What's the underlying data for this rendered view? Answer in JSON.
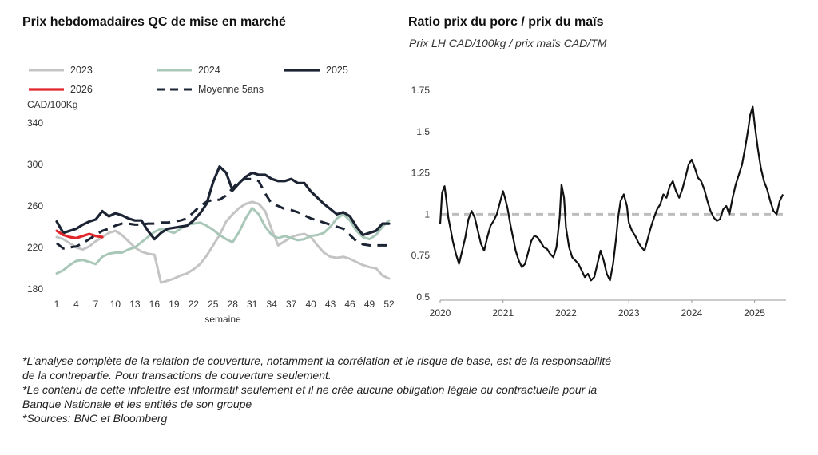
{
  "charts": {
    "left": {
      "title": "Prix hebdomadaires QC de mise en marché"
    },
    "right": {
      "title": "Ratio prix du porc / prix du maïs",
      "subtitle": "Prix LH CAD/100kg / prix maïs CAD/TM"
    }
  },
  "footnotes": [
    "*L’analyse complète de la relation de couverture, notamment la corrélation et le risque de base, est de la responsabilité",
    "de la contrepartie. Pour transactions de couverture seulement.",
    "*Le contenu de cette infolettre est informatif seulement et il ne crée aucune obligation légale ou contractuelle pour la",
    "Banque Nationale et les entités de son groupe",
    "*Sources: BNC et Bloomberg"
  ],
  "chart_data": [
    {
      "type": "line",
      "title": "Prix hebdomadaires QC de mise en marché",
      "ylabel": "CAD/100Kg",
      "xlabel": "semaine",
      "ylim": [
        180,
        340
      ],
      "yticks": [
        180,
        220,
        260,
        300,
        340
      ],
      "xlim": [
        1,
        52
      ],
      "xticks": [
        1,
        4,
        7,
        10,
        13,
        16,
        19,
        22,
        25,
        28,
        31,
        34,
        37,
        40,
        43,
        46,
        49,
        52
      ],
      "grid": false,
      "legend_position": "top",
      "series": [
        {
          "name": "2023",
          "color": "#c4c4c4",
          "dash": false,
          "width": 3,
          "x": [
            1,
            2,
            3,
            4,
            5,
            6,
            7,
            8,
            9,
            10,
            11,
            12,
            13,
            14,
            15,
            16,
            17,
            18,
            19,
            20,
            21,
            22,
            23,
            24,
            25,
            26,
            27,
            28,
            29,
            30,
            31,
            32,
            33,
            34,
            35,
            36,
            37,
            38,
            39,
            40,
            41,
            42,
            43,
            44,
            45,
            46,
            47,
            48,
            49,
            50,
            51,
            52
          ],
          "values": [
            230,
            228,
            224,
            220,
            218,
            221,
            226,
            230,
            234,
            236,
            232,
            226,
            220,
            216,
            214,
            213,
            186,
            188,
            190,
            193,
            195,
            199,
            204,
            212,
            222,
            232,
            245,
            252,
            258,
            262,
            264,
            262,
            255,
            237,
            222,
            226,
            230,
            232,
            233,
            230,
            222,
            215,
            211,
            210,
            211,
            209,
            206,
            203,
            201,
            200,
            193,
            190
          ]
        },
        {
          "name": "2024",
          "color": "#a9c7b8",
          "dash": false,
          "width": 3,
          "x": [
            1,
            2,
            3,
            4,
            5,
            6,
            7,
            8,
            9,
            10,
            11,
            12,
            13,
            14,
            15,
            16,
            17,
            18,
            19,
            20,
            21,
            22,
            23,
            24,
            25,
            26,
            27,
            28,
            29,
            30,
            31,
            32,
            33,
            34,
            35,
            36,
            37,
            38,
            39,
            40,
            41,
            42,
            43,
            44,
            45,
            46,
            47,
            48,
            49,
            50,
            51,
            52
          ],
          "values": [
            195,
            198,
            203,
            207,
            208,
            206,
            204,
            211,
            214,
            215,
            215,
            218,
            220,
            225,
            230,
            235,
            238,
            236,
            234,
            238,
            242,
            243,
            244,
            241,
            237,
            232,
            228,
            225,
            235,
            248,
            258,
            252,
            240,
            232,
            229,
            231,
            229,
            227,
            228,
            231,
            232,
            234,
            240,
            248,
            252,
            246,
            236,
            230,
            228,
            232,
            240,
            246
          ]
        },
        {
          "name": "2025",
          "color": "#1c2434",
          "dash": false,
          "width": 3.2,
          "x": [
            1,
            2,
            3,
            4,
            5,
            6,
            7,
            8,
            9,
            10,
            11,
            12,
            13,
            14,
            15,
            16,
            17,
            18,
            19,
            20,
            21,
            22,
            23,
            24,
            25,
            26,
            27,
            28,
            29,
            30,
            31,
            32,
            33,
            34,
            35,
            36,
            37,
            38,
            39,
            40,
            41,
            42,
            43,
            44,
            45,
            46,
            47,
            48,
            49,
            50,
            51,
            52
          ],
          "values": [
            245,
            234,
            236,
            238,
            242,
            245,
            247,
            255,
            250,
            253,
            251,
            248,
            246,
            246,
            236,
            228,
            234,
            238,
            239,
            240,
            241,
            246,
            253,
            262,
            283,
            298,
            292,
            275,
            282,
            288,
            292,
            290,
            290,
            286,
            284,
            284,
            286,
            282,
            282,
            274,
            268,
            262,
            257,
            252,
            254,
            250,
            240,
            232,
            234,
            236,
            243,
            243
          ]
        },
        {
          "name": "2026",
          "color": "#e0262a",
          "dash": false,
          "width": 3.2,
          "x": [
            1,
            2,
            3,
            4,
            5,
            6,
            7,
            8
          ],
          "values": [
            236,
            232,
            230,
            229,
            231,
            233,
            231,
            230
          ]
        },
        {
          "name": "Moyenne 5ans",
          "color": "#1c2434",
          "dash": true,
          "width": 3,
          "x": [
            1,
            2,
            3,
            4,
            5,
            6,
            7,
            8,
            9,
            10,
            11,
            12,
            13,
            14,
            15,
            16,
            17,
            18,
            19,
            20,
            21,
            22,
            23,
            24,
            25,
            26,
            27,
            28,
            29,
            30,
            31,
            32,
            33,
            34,
            35,
            36,
            37,
            38,
            39,
            40,
            41,
            42,
            43,
            44,
            45,
            46,
            47,
            48,
            49,
            50,
            51,
            52
          ],
          "values": [
            224,
            219,
            220,
            221,
            224,
            228,
            232,
            236,
            238,
            241,
            243,
            243,
            242,
            242,
            243,
            243,
            244,
            244,
            245,
            246,
            248,
            254,
            260,
            264,
            266,
            266,
            270,
            277,
            284,
            286,
            286,
            284,
            272,
            262,
            260,
            257,
            256,
            254,
            251,
            248,
            246,
            244,
            242,
            240,
            238,
            232,
            226,
            223,
            222,
            222,
            222,
            222
          ]
        }
      ]
    },
    {
      "type": "line",
      "title": "Ratio prix du porc / prix du maïs",
      "subtitle": "Prix LH CAD/100kg / prix maïs CAD/TM",
      "ylim": [
        0.5,
        1.75
      ],
      "yticks": [
        0.5,
        0.75,
        1,
        1.25,
        1.5,
        1.75
      ],
      "ytick_labels": [
        "0.5",
        "0.75",
        "1",
        "1.25",
        "1.5",
        "1.75"
      ],
      "xlim": [
        2020,
        2025.5
      ],
      "xticks": [
        2020,
        2021,
        2022,
        2023,
        2024,
        2025
      ],
      "grid": false,
      "reference_line": {
        "y": 1,
        "color": "#bdbdbd",
        "dash": true
      },
      "series": [
        {
          "color": "#111111",
          "width": 2.2,
          "x": [
            2020,
            2020.03,
            2020.07,
            2020.1,
            2020.13,
            2020.17,
            2020.2,
            2020.25,
            2020.3,
            2020.35,
            2020.4,
            2020.45,
            2020.5,
            2020.55,
            2020.6,
            2020.65,
            2020.7,
            2020.75,
            2020.8,
            2020.85,
            2020.9,
            2020.95,
            2021,
            2021.03,
            2021.07,
            2021.12,
            2021.17,
            2021.2,
            2021.25,
            2021.3,
            2021.35,
            2021.4,
            2021.45,
            2021.5,
            2021.55,
            2021.6,
            2021.65,
            2021.7,
            2021.75,
            2021.8,
            2021.85,
            2021.9,
            2021.93,
            2021.97,
            2022,
            2022.05,
            2022.1,
            2022.15,
            2022.2,
            2022.25,
            2022.3,
            2022.35,
            2022.4,
            2022.45,
            2022.5,
            2022.55,
            2022.6,
            2022.65,
            2022.7,
            2022.75,
            2022.8,
            2022.83,
            2022.87,
            2022.92,
            2022.97,
            2023,
            2023.05,
            2023.1,
            2023.15,
            2023.2,
            2023.25,
            2023.3,
            2023.35,
            2023.4,
            2023.45,
            2023.5,
            2023.55,
            2023.6,
            2023.65,
            2023.7,
            2023.75,
            2023.8,
            2023.85,
            2023.9,
            2023.95,
            2024,
            2024.05,
            2024.1,
            2024.15,
            2024.2,
            2024.25,
            2024.3,
            2024.35,
            2024.4,
            2024.45,
            2024.5,
            2024.55,
            2024.6,
            2024.65,
            2024.7,
            2024.75,
            2024.8,
            2024.85,
            2024.9,
            2024.93,
            2024.97,
            2025,
            2025.05,
            2025.1,
            2025.15,
            2025.2,
            2025.25,
            2025.3,
            2025.35,
            2025.4,
            2025.45
          ],
          "values": [
            0.94,
            1.13,
            1.17,
            1.08,
            0.98,
            0.9,
            0.84,
            0.76,
            0.7,
            0.78,
            0.86,
            0.97,
            1.02,
            0.98,
            0.9,
            0.82,
            0.78,
            0.86,
            0.93,
            0.96,
            1.0,
            1.07,
            1.14,
            1.1,
            1.04,
            0.93,
            0.84,
            0.78,
            0.72,
            0.68,
            0.7,
            0.77,
            0.84,
            0.87,
            0.86,
            0.83,
            0.8,
            0.79,
            0.76,
            0.74,
            0.8,
            0.98,
            1.18,
            1.1,
            0.92,
            0.8,
            0.74,
            0.72,
            0.7,
            0.66,
            0.62,
            0.64,
            0.6,
            0.62,
            0.7,
            0.78,
            0.72,
            0.64,
            0.6,
            0.7,
            0.86,
            0.98,
            1.08,
            1.12,
            1.05,
            0.95,
            0.9,
            0.87,
            0.83,
            0.8,
            0.78,
            0.85,
            0.92,
            0.98,
            1.03,
            1.06,
            1.12,
            1.1,
            1.17,
            1.2,
            1.14,
            1.1,
            1.15,
            1.22,
            1.3,
            1.33,
            1.28,
            1.22,
            1.2,
            1.15,
            1.08,
            1.02,
            0.98,
            0.96,
            0.97,
            1.03,
            1.05,
            1.0,
            1.1,
            1.18,
            1.24,
            1.3,
            1.4,
            1.52,
            1.6,
            1.65,
            1.55,
            1.4,
            1.28,
            1.2,
            1.15,
            1.08,
            1.02,
            1.0,
            1.08,
            1.12
          ]
        }
      ]
    }
  ]
}
